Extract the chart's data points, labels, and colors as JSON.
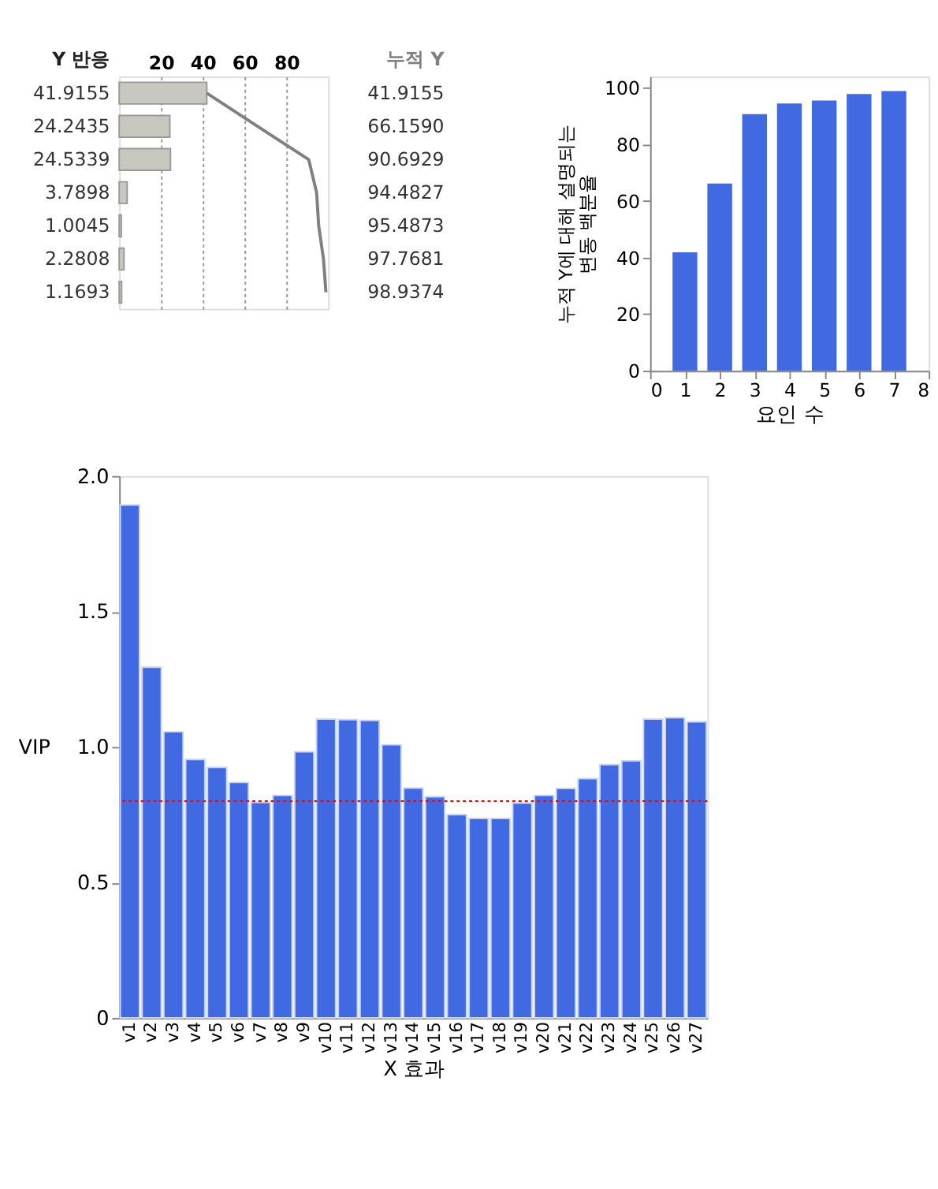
{
  "chart_data": [
    {
      "type": "bar",
      "orientation": "horizontal",
      "categories": [
        null,
        null,
        null,
        null,
        null,
        null,
        null
      ],
      "xlim": [
        0,
        100
      ],
      "xticks": [
        20,
        40,
        60,
        80
      ],
      "grid": "x",
      "series": [
        {
          "name": "Y 반응",
          "color": "#c8c8c0",
          "values": [
            41.9155,
            24.2435,
            24.5339,
            3.7898,
            1.0045,
            2.2808,
            1.1693
          ],
          "value_labels": [
            "41.9155",
            "24.2435",
            "24.5339",
            "3.7898",
            "1.0045",
            "2.2808",
            "1.1693"
          ]
        },
        {
          "name": "누적 Y",
          "type": "line",
          "color": "#808080",
          "values": [
            41.9155,
            66.159,
            90.6929,
            94.4827,
            95.4873,
            97.7681,
            98.9374
          ],
          "value_labels": [
            "41.9155",
            "66.1590",
            "90.6929",
            "94.4827",
            "95.4873",
            "97.7681",
            "98.9374"
          ]
        }
      ]
    },
    {
      "type": "bar",
      "x": [
        1,
        2,
        3,
        4,
        5,
        6,
        7
      ],
      "values": [
        41.9,
        66.2,
        90.7,
        94.5,
        95.5,
        97.8,
        98.9
      ],
      "color": "#4169e1",
      "xlim": [
        0,
        8
      ],
      "xticks": [
        0,
        1,
        2,
        3,
        4,
        5,
        6,
        7,
        8
      ],
      "ylim": [
        0,
        104
      ],
      "yticks": [
        0,
        20,
        40,
        60,
        80,
        100
      ],
      "xlabel": "요인 수",
      "ylabel": "누적 Y에 대해 설명되는\n변동 백분율"
    },
    {
      "type": "bar",
      "categories": [
        "v1",
        "v2",
        "v3",
        "v4",
        "v5",
        "v6",
        "v7",
        "v8",
        "v9",
        "v10",
        "v11",
        "v12",
        "v13",
        "v14",
        "v15",
        "v16",
        "v17",
        "v18",
        "v19",
        "v20",
        "v21",
        "v22",
        "v23",
        "v24",
        "v25",
        "v26",
        "v27"
      ],
      "values": [
        1.893,
        1.294,
        1.056,
        0.954,
        0.925,
        0.869,
        0.795,
        0.821,
        0.982,
        1.103,
        1.101,
        1.098,
        1.008,
        0.848,
        0.816,
        0.75,
        0.736,
        0.736,
        0.793,
        0.821,
        0.847,
        0.883,
        0.935,
        0.949,
        1.103,
        1.108,
        1.093
      ],
      "color": "#4169e1",
      "ylim": [
        0,
        2
      ],
      "yticks": [
        0,
        0.5,
        {
          "value": 1,
          "label": "1.0"
        },
        1.5,
        {
          "value": 2,
          "label": "2.0"
        }
      ],
      "xlabel": "X 효과",
      "ylabel": "VIP",
      "ref_lines": [
        {
          "axis": "y",
          "value": 0.8,
          "color": "#ff0000",
          "line_style": "dotted"
        }
      ]
    }
  ]
}
